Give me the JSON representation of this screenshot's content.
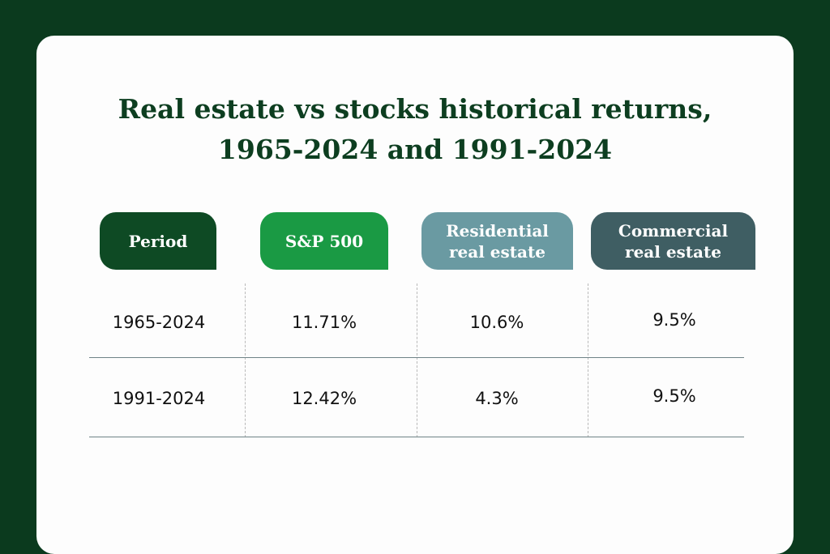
{
  "title": {
    "line1": "Real estate vs stocks historical returns,",
    "line2": "1965-2024 and 1991-2024"
  },
  "headers": {
    "period": "Period",
    "sp500": "S&P 500",
    "residential_line1": "Residential",
    "residential_line2": "real estate",
    "commercial_line1": "Commercial",
    "commercial_line2": "real estate"
  },
  "rows": [
    {
      "period": "1965-2024",
      "sp500": "11.71%",
      "residential": "10.6%",
      "commercial": "9.5%"
    },
    {
      "period": "1991-2024",
      "sp500": "12.42%",
      "residential": "4.3%",
      "commercial": "9.5%"
    }
  ],
  "colors": {
    "background": "#0b3a1e",
    "card": "#fdfdfd",
    "title": "#0d3e20",
    "period_header": "#0e4a24",
    "sp500_header": "#1a9a44",
    "residential_header": "#6a9aa2",
    "commercial_header": "#3f5e63",
    "rule": "#6f8387"
  }
}
